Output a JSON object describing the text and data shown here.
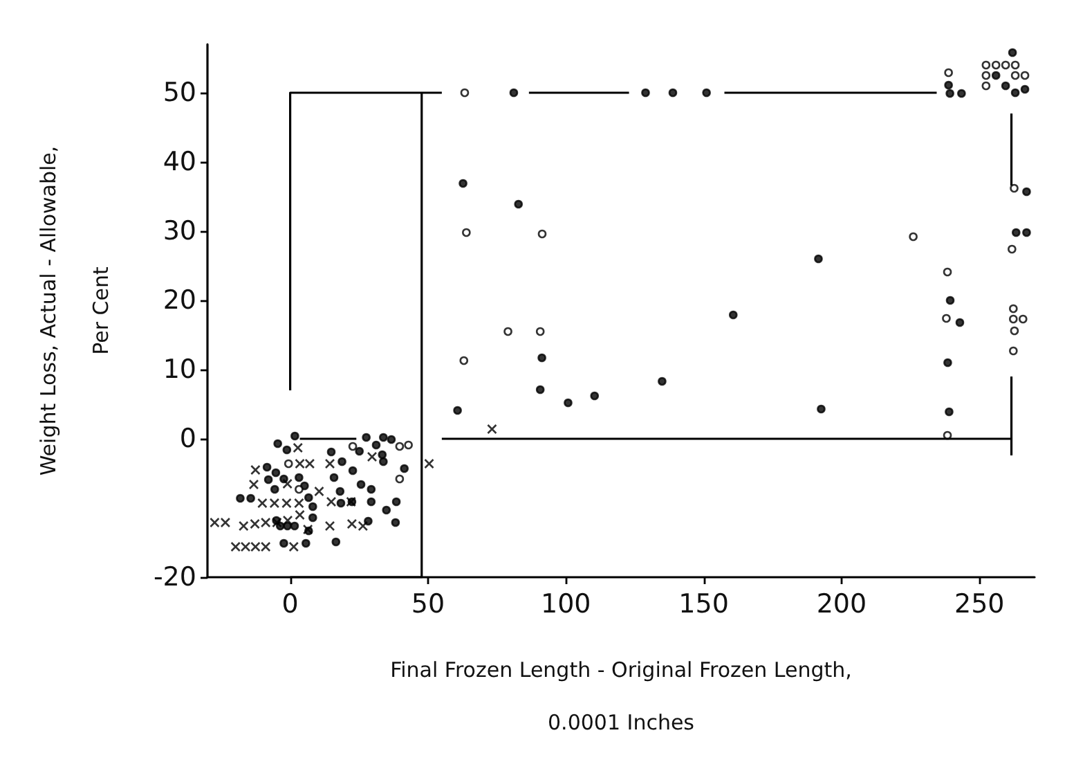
{
  "chart_data": {
    "type": "scatter",
    "xlabel": "Final Frozen Length - Original Frozen Length,\n0.0001 Inches",
    "ylabel": "Weight Loss, Actual - Allowable,\nPer Cent",
    "xlim": [
      -30,
      270
    ],
    "xticks": [
      0,
      50,
      100,
      150,
      200,
      250
    ],
    "ylim": [
      -20,
      57
    ],
    "yticks": [
      -20,
      0,
      10,
      20,
      30,
      40,
      50
    ],
    "grid": false,
    "series": [
      {
        "marker": "circle",
        "color": "#000000",
        "x": [
          81.1,
          128.9,
          138.8,
          151,
          62.7,
          82.8,
          91.3,
          90.7,
          100.8,
          110.4,
          134.9,
          60.7,
          238.8,
          239.3,
          243.5,
          191.6,
          239.4,
          242.9,
          238.5,
          239,
          160.7,
          192.6,
          267.1,
          263.3,
          267.1,
          256,
          259.5,
          262,
          263,
          266.5,
          -4.5,
          1.7,
          -1.2,
          -8.4,
          -5.2,
          -7.9,
          3.2,
          -2.3,
          -5.6,
          -18.1,
          -14.3,
          5.2,
          6.7,
          8.2,
          -5,
          -3.6,
          -1,
          1.6,
          6.7,
          5.7,
          -2.3,
          8.2,
          14.9,
          18.8,
          22.7,
          15.9,
          18.1,
          18.4,
          22.4,
          16.6,
          25.7,
          29.4,
          29.4,
          28.3,
          27.6,
          31.2,
          33.8,
          36.7,
          33.8,
          41.4,
          38.5,
          34.9,
          38.2,
          25.1,
          33.4
        ],
        "values": [
          50,
          50,
          50,
          50,
          36.9,
          33.9,
          11.7,
          7.1,
          5.2,
          6.2,
          8.3,
          4.1,
          51.1,
          49.9,
          49.9,
          26,
          20,
          16.8,
          11,
          3.9,
          17.9,
          4.3,
          35.7,
          29.8,
          29.8,
          52.5,
          51,
          55.8,
          50,
          50.5,
          -0.7,
          0.4,
          -1.6,
          -4.1,
          -4.9,
          -5.9,
          -5.6,
          -5.8,
          -7.3,
          -8.6,
          -8.6,
          -6.8,
          -8.5,
          -9.8,
          -11.8,
          -12.6,
          -12.6,
          -12.6,
          -13.3,
          -15.1,
          -15.1,
          -11.4,
          -1.9,
          -3.3,
          -4.6,
          -5.6,
          -7.6,
          -9.3,
          -9.1,
          -14.9,
          -6.6,
          -7.3,
          -9.1,
          -11.9,
          0.2,
          -0.9,
          0.2,
          -0.1,
          -3.3,
          -4.3,
          -9.1,
          -10.3,
          -12.1,
          -1.8,
          -2.3
        ]
      },
      {
        "marker": "circle",
        "color": "#ffffff",
        "x": [
          63.3,
          63.9,
          91.4,
          79,
          90.7,
          63,
          238.8,
          226,
          238.4,
          238,
          238.4,
          262.6,
          261.8,
          262.3,
          262.3,
          265.8,
          262.7,
          262.3,
          252.4,
          252.4,
          252.4,
          256,
          259.5,
          263,
          263,
          266.5,
          22.7,
          39.7,
          42.9,
          39.7,
          -0.6,
          3.2
        ],
        "values": [
          50,
          29.8,
          29.6,
          15.5,
          15.5,
          11.3,
          52.9,
          29.2,
          24.1,
          17.4,
          0.5,
          36.2,
          27.4,
          18.8,
          17.3,
          17.3,
          15.6,
          12.7,
          54,
          52.5,
          51,
          54,
          54,
          54,
          52.5,
          52.5,
          -1.1,
          -1.1,
          -0.9,
          -5.8,
          -3.6,
          -7.3
        ]
      },
      {
        "marker": "cross",
        "color": "#000000",
        "x": [
          73.2,
          2.8,
          -12.6,
          -13.2,
          3.5,
          7.1,
          -1,
          -10.1,
          -5.7,
          -1.3,
          3.2,
          -27.4,
          -23.5,
          -16.9,
          -12.8,
          -8.9,
          -4.8,
          -0.9,
          3.5,
          6.4,
          -19.8,
          -16.2,
          -12.6,
          -8.9,
          1.3,
          10.5,
          14.4,
          14.9,
          22.1,
          14.4,
          22.4,
          26.4,
          29.7,
          50.4
        ],
        "values": [
          1.4,
          -1.3,
          -4.5,
          -6.6,
          -3.6,
          -3.6,
          -6.5,
          -9.3,
          -9.3,
          -9.3,
          -9.3,
          -12.1,
          -12.1,
          -12.6,
          -12.3,
          -12.1,
          -12.1,
          -11.8,
          -11,
          -13.1,
          -15.6,
          -15.6,
          -15.6,
          -15.6,
          -15.6,
          -7.6,
          -3.6,
          -9.1,
          -9.1,
          -12.6,
          -12.3,
          -12.6,
          -2.6,
          -3.6
        ]
      },
      {
        "type": "line",
        "marker": "none",
        "color": "#000000",
        "x": [
          0,
          0,
          55
        ],
        "values": [
          7,
          50,
          50
        ]
      },
      {
        "type": "line",
        "marker": "none",
        "color": "#000000",
        "x": [
          47.7,
          47.7,
          0
        ],
        "values": [
          50,
          -20,
          -20
        ]
      },
      {
        "type": "line",
        "marker": "none",
        "color": "#000000",
        "x": [
          3.5,
          24
        ],
        "values": [
          0,
          0
        ]
      },
      {
        "type": "line",
        "marker": "none",
        "color": "#000000",
        "x": [
          55,
          261.6
        ],
        "values": [
          0,
          0
        ]
      },
      {
        "type": "line",
        "marker": "none",
        "color": "#000000",
        "x": [
          261.6,
          261.6
        ],
        "values": [
          9,
          -2.4
        ]
      },
      {
        "type": "line",
        "marker": "none",
        "color": "#000000",
        "x": [
          261.6,
          261.6
        ],
        "values": [
          47,
          36.6
        ]
      },
      {
        "type": "line",
        "marker": "none",
        "color": "#000000",
        "x": [
          86.6,
          122.9
        ],
        "values": [
          50,
          50
        ]
      },
      {
        "type": "line",
        "marker": "none",
        "color": "#000000",
        "x": [
          157.5,
          234.5
        ],
        "values": [
          50,
          50
        ]
      }
    ]
  }
}
